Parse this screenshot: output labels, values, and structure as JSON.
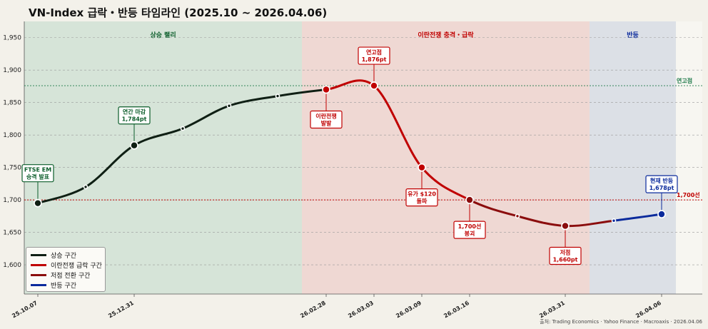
{
  "title": "VN-Index 급락・반등 타임라인  (2025.10 ~ 2026.04.06)",
  "source": "출처: Trading Economics · Yahoo Finance · Macroaxis · 2026.04.06",
  "chart_data": {
    "type": "line",
    "ylim": [
      1555,
      1975
    ],
    "yticks": [
      1600,
      1650,
      1700,
      1750,
      1800,
      1850,
      1900,
      1950
    ],
    "grid": true,
    "legend_position": "bottom-left",
    "x_ticks": [
      "25.10.07",
      "25.12.31",
      "26.02.28",
      "26.03.03",
      "26.03.09",
      "26.03.16",
      "26.03.31",
      "26.04.06"
    ],
    "points": [
      {
        "x": "25.10.07",
        "y": 1695
      },
      {
        "x": "25.11",
        "y": 1720
      },
      {
        "x": "25.12.31",
        "y": 1784
      },
      {
        "x": "26.01",
        "y": 1810
      },
      {
        "x": "26.01",
        "y": 1845
      },
      {
        "x": "26.02",
        "y": 1860
      },
      {
        "x": "26.02.28",
        "y": 1870
      },
      {
        "x": "26.03.03",
        "y": 1876
      },
      {
        "x": "26.03.09",
        "y": 1750
      },
      {
        "x": "26.03.16",
        "y": 1700
      },
      {
        "x": "26.03",
        "y": 1675
      },
      {
        "x": "26.03.31",
        "y": 1660
      },
      {
        "x": "26.04",
        "y": 1668
      },
      {
        "x": "26.04.06",
        "y": 1678
      }
    ],
    "series": [
      {
        "name": "상승 구간",
        "color": "#0f1f14",
        "from": 0,
        "to": 6
      },
      {
        "name": "이란전쟁 급락 구간",
        "color": "#c00000",
        "from": 6,
        "to": 9
      },
      {
        "name": "저점 전환 구간",
        "color": "#8b0d0d",
        "from": 9,
        "to": 12
      },
      {
        "name": "반등 구간",
        "color": "#0a2a9c",
        "from": 12,
        "to": 13
      }
    ],
    "bands": [
      {
        "label": "상승 랠리",
        "from": "25.10.07",
        "to": "26.02.28",
        "color": "#d6e4d8",
        "text_color": "#0b5d2a"
      },
      {
        "label": "이란전쟁 충격・급락",
        "from": "26.02.28",
        "to": "26.03.31",
        "color": "#efd8d3",
        "text_color": "#c00000"
      },
      {
        "label": "반등",
        "from": "26.03.31",
        "to": "26.04.06",
        "color": "#dce0e6",
        "text_color": "#0a2a9c"
      }
    ],
    "reference_lines": [
      {
        "label": "연고점",
        "value": 1876,
        "color": "#1f7a4a"
      },
      {
        "label": "1,700선",
        "value": 1700,
        "color": "#c00000"
      }
    ],
    "annotations": [
      {
        "text": [
          "FTSE EM",
          "승격 발표"
        ],
        "point": 0,
        "color": "#0b5d2a",
        "pos": "above"
      },
      {
        "text": [
          "연간 마감",
          "1,784pt"
        ],
        "point": 2,
        "color": "#0b5d2a",
        "pos": "above"
      },
      {
        "text": [
          "이란전쟁",
          "발발"
        ],
        "point": 6,
        "color": "#c00000",
        "pos": "below"
      },
      {
        "text": [
          "연고점",
          "1,876pt"
        ],
        "point": 7,
        "color": "#c00000",
        "pos": "above"
      },
      {
        "text": [
          "유가 $120",
          "돌파"
        ],
        "point": 8,
        "color": "#c00000",
        "pos": "below"
      },
      {
        "text": [
          "1,700선",
          "붕괴"
        ],
        "point": 9,
        "color": "#c00000",
        "pos": "below"
      },
      {
        "text": [
          "저점",
          "1,660pt"
        ],
        "point": 11,
        "color": "#c00000",
        "pos": "below"
      },
      {
        "text": [
          "현재 반등",
          "1,678pt"
        ],
        "point": 13,
        "color": "#0a2a9c",
        "pos": "above"
      }
    ]
  }
}
